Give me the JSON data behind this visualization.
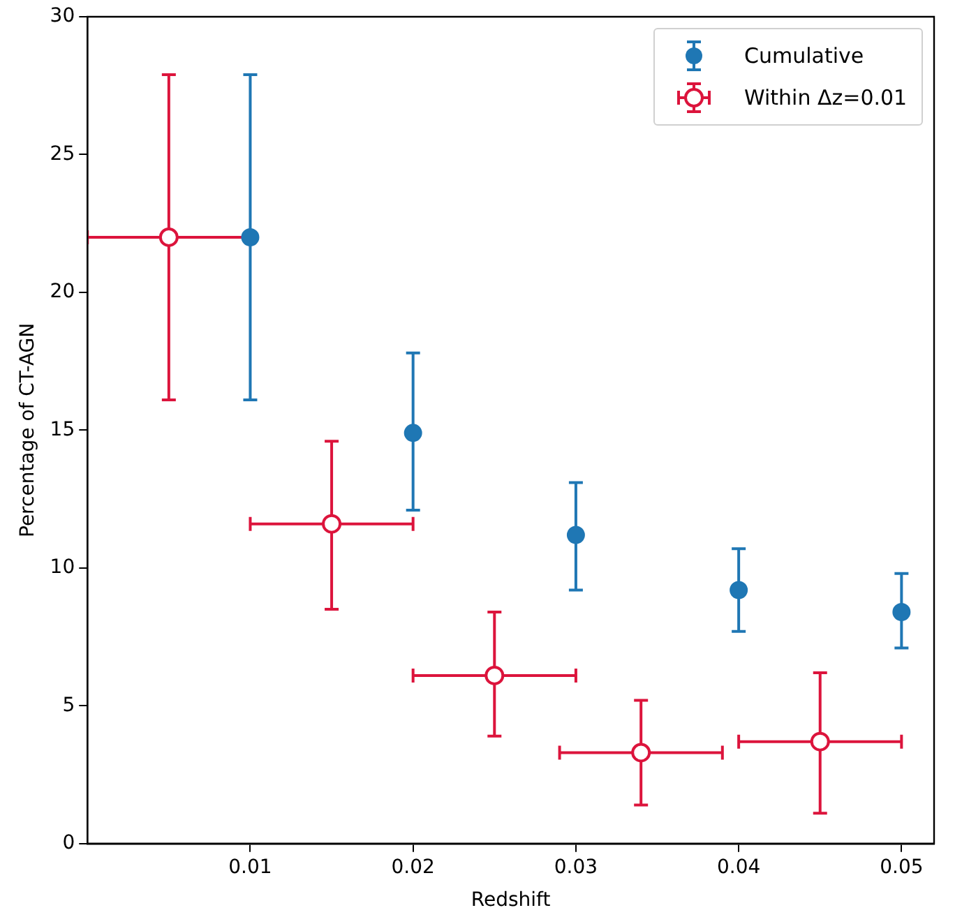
{
  "chart_data": {
    "type": "scatter",
    "xlabel": "Redshift",
    "ylabel": "Percentage of CT-AGN",
    "xlim": [
      0,
      0.052
    ],
    "xticks": [
      0.01,
      0.02,
      0.03,
      0.04,
      0.05
    ],
    "ylim": [
      0,
      30
    ],
    "yticks": [
      0,
      5,
      10,
      15,
      20,
      25,
      30
    ],
    "grid": false,
    "legend": "top right",
    "marker": "circle",
    "series": [
      {
        "name": "Cumulative",
        "color": "#1f77b4",
        "x": [
          0.01,
          0.02,
          0.03,
          0.04,
          0.05
        ],
        "values": [
          22.0,
          14.9,
          11.2,
          9.2,
          8.4
        ],
        "errors": [
          [
            16.1,
            27.9
          ],
          [
            12.1,
            17.8
          ],
          [
            9.2,
            13.1
          ],
          [
            7.7,
            10.7
          ],
          [
            7.1,
            9.8
          ]
        ]
      },
      {
        "name": "Within Δz=0.01",
        "color": "#dc143c",
        "x": [
          0.005,
          0.015,
          0.025,
          0.034,
          0.045
        ],
        "values": [
          22.0,
          11.6,
          6.1,
          3.3,
          3.7
        ],
        "errors": [
          [
            16.1,
            27.9
          ],
          [
            8.5,
            14.6
          ],
          [
            3.9,
            8.4
          ],
          [
            1.4,
            5.2
          ],
          [
            1.1,
            6.2
          ]
        ],
        "xerrors": [
          0.005,
          0.005,
          0.005,
          0.005,
          0.005
        ]
      }
    ]
  }
}
